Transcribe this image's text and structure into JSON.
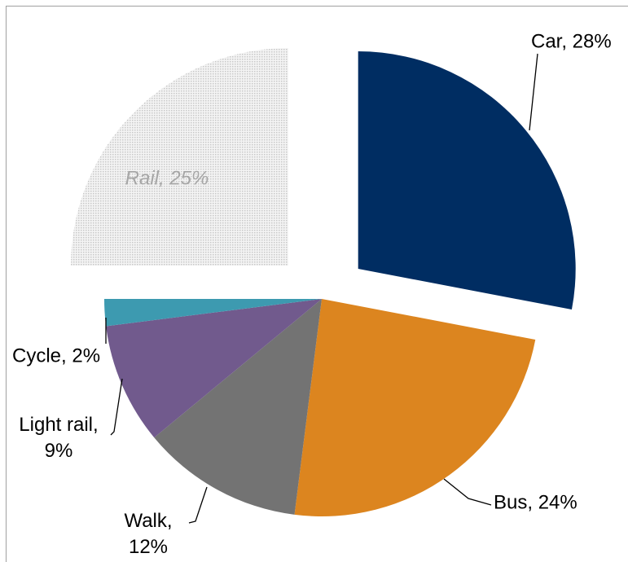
{
  "chart_data": {
    "type": "pie",
    "values": [
      28,
      24,
      12,
      9,
      2,
      25
    ],
    "value_labels": [
      "Car, 28%",
      "Bus, 24%",
      "Walk, 12%",
      "Light rail, 9%",
      "Cycle, 2%",
      "Rail, 25%"
    ],
    "colors": [
      "#002d62",
      "#dc851f",
      "#737373",
      "#715a8d",
      "#3d9ab0",
      "#d9d9d9"
    ],
    "exploded": [
      true,
      false,
      false,
      false,
      false,
      true
    ],
    "hatched": [
      false,
      false,
      false,
      false,
      false,
      true
    ],
    "start_angle": 0,
    "direction": "clockwise"
  }
}
